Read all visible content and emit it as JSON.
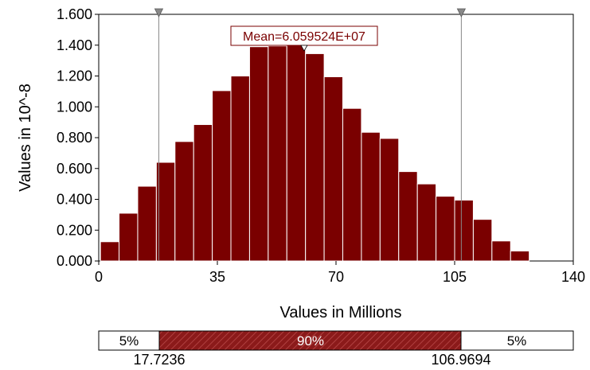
{
  "chart_data": {
    "type": "bar",
    "subtype": "histogram",
    "ylabel": "Values in 10^-8",
    "xlabel": "Values in Millions",
    "xlim": [
      0,
      140
    ],
    "ylim": [
      0,
      1.6
    ],
    "y_ticks": [
      "0.000",
      "0.200",
      "0.400",
      "0.600",
      "0.800",
      "1.000",
      "1.200",
      "1.400",
      "1.600"
    ],
    "x_ticks": [
      "0",
      "35",
      "70",
      "105",
      "140"
    ],
    "bin_width": 5.5,
    "bins_start": [
      0.5,
      6,
      11.5,
      17,
      22.5,
      28,
      33.5,
      39,
      44.5,
      50,
      55.5,
      61,
      66.5,
      72,
      77.5,
      83,
      88.5,
      94,
      99.5,
      105,
      110.5,
      116,
      121.5,
      127
    ],
    "values": [
      0.125,
      0.31,
      0.485,
      0.64,
      0.775,
      0.885,
      1.105,
      1.2,
      1.39,
      1.395,
      1.41,
      1.345,
      1.195,
      0.99,
      0.835,
      0.795,
      0.58,
      0.5,
      0.42,
      0.395,
      0.27,
      0.13,
      0.065,
      0.0
    ],
    "bar_color": "#7a0000",
    "grid": false,
    "mean": {
      "label": "Mean=6.059524E+07",
      "value": 60.59524
    },
    "markers": [
      17.7236,
      106.9694
    ],
    "probability_band": {
      "left_pct": "5%",
      "middle_pct": "90%",
      "right_pct": "5%",
      "left_value": "17.7236",
      "right_value": "106.9694"
    }
  }
}
